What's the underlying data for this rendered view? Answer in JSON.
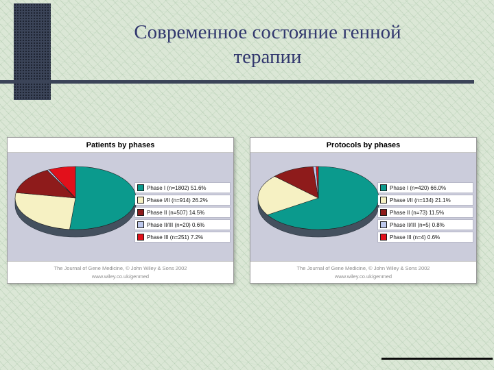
{
  "slide": {
    "title_line1": "Современное состояние генной",
    "title_line2": "терапии"
  },
  "chart_data": [
    {
      "type": "pie",
      "title": "Patients by phases",
      "categories": [
        "Phase I",
        "Phase I/II",
        "Phase II",
        "Phase II/III",
        "Phase III"
      ],
      "counts": [
        1802,
        914,
        507,
        20,
        251
      ],
      "values": [
        51.6,
        26.2,
        14.5,
        0.6,
        7.2
      ],
      "colors": [
        "#0b9a8d",
        "#f6f1c3",
        "#8e1b1b",
        "#bdc8ec",
        "#e2101b"
      ],
      "legend_position": "right",
      "legend": [
        "Phase I (n=1802)  51.6%",
        "Phase I/II (n=914)  26.2%",
        "Phase II (n=507)  14.5%",
        "Phase II/III (n=20)  0.6%",
        "Phase III (n=251)  7.2%"
      ],
      "footer_line1": "The Journal of Gene Medicine, © John Wiley & Sons 2002",
      "footer_line2": "www.wiley.co.uk/genmed"
    },
    {
      "type": "pie",
      "title": "Protocols by phases",
      "categories": [
        "Phase I",
        "Phase I/II",
        "Phase II",
        "Phase II/III",
        "Phase III"
      ],
      "counts": [
        420,
        134,
        73,
        5,
        4
      ],
      "values": [
        66.0,
        21.1,
        11.5,
        0.8,
        0.6
      ],
      "colors": [
        "#0b9a8d",
        "#f6f1c3",
        "#8e1b1b",
        "#bdc8ec",
        "#e2101b"
      ],
      "legend_position": "right",
      "legend": [
        "Phase I (n=420)  66.0%",
        "Phase I/II (n=134)  21.1%",
        "Phase II (n=73)  11.5%",
        "Phase II/III (n=5)  0.8%",
        "Phase III (n=4)  0.6%"
      ],
      "footer_line1": "The Journal of Gene Medicine, © John Wiley & Sons 2002",
      "footer_line2": "www.wiley.co.uk/genmed"
    }
  ]
}
